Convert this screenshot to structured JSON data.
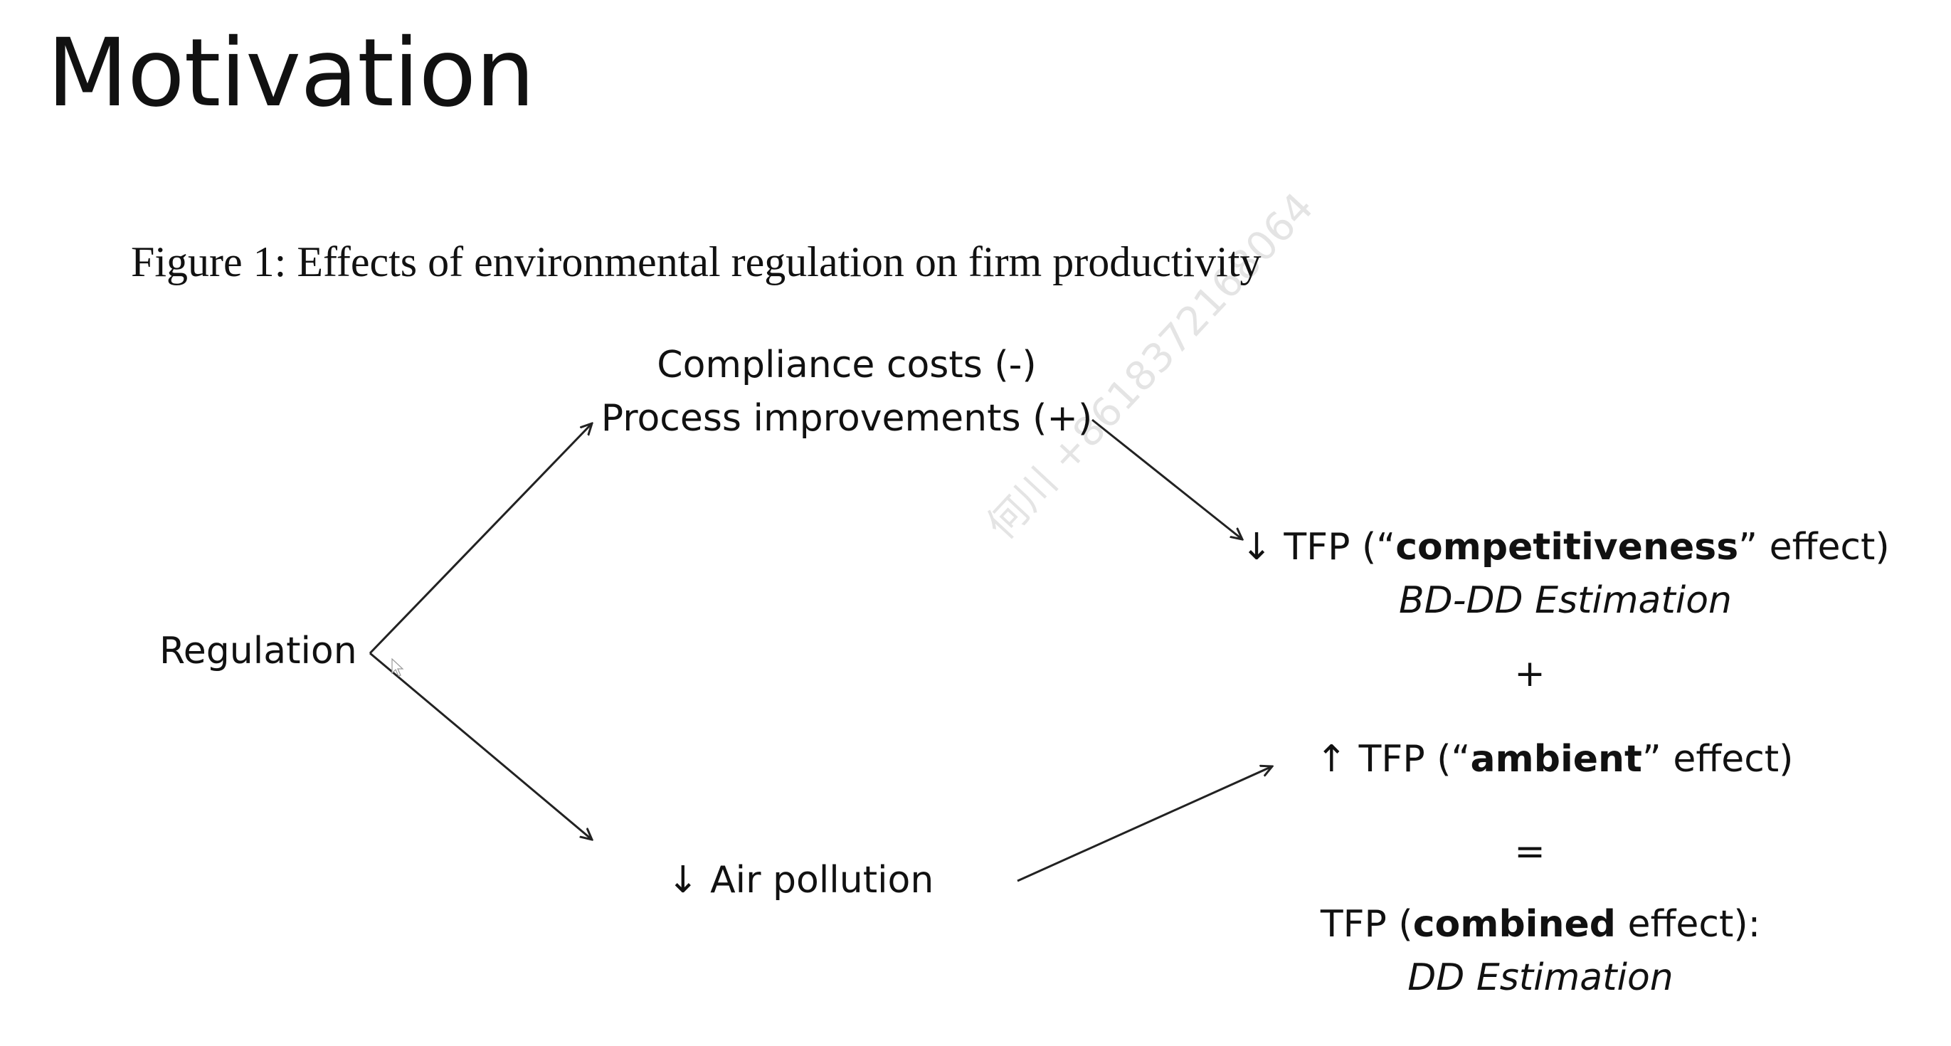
{
  "slide": {
    "title": "Motivation",
    "figure_caption": "Figure 1: Effects of environmental regulation on firm productivity"
  },
  "diagram": {
    "regulation": "Regulation",
    "compliance_costs": "Compliance costs (-)",
    "process_improvements": "Process improvements (+)",
    "air_pollution": {
      "arrow": "↓",
      "label": "Air pollution"
    },
    "competitiveness": {
      "arrow": "↓",
      "prefix": "TFP (“",
      "bold": "competitiveness",
      "suffix": "” effect)",
      "method": "BD-DD Estimation"
    },
    "plus_sign": "+",
    "ambient": {
      "arrow": "↑",
      "prefix": "TFP (“",
      "bold": "ambient",
      "suffix": "” effect)"
    },
    "equals_sign": "=",
    "combined": {
      "prefix": "TFP (",
      "bold": "combined",
      "suffix": " effect):",
      "method": "DD Estimation"
    }
  },
  "watermark": "何川 +8618372168064",
  "colors": {
    "text": "#111111",
    "arrow": "#222222",
    "watermark": "#e4e4e4",
    "background": "#ffffff"
  }
}
